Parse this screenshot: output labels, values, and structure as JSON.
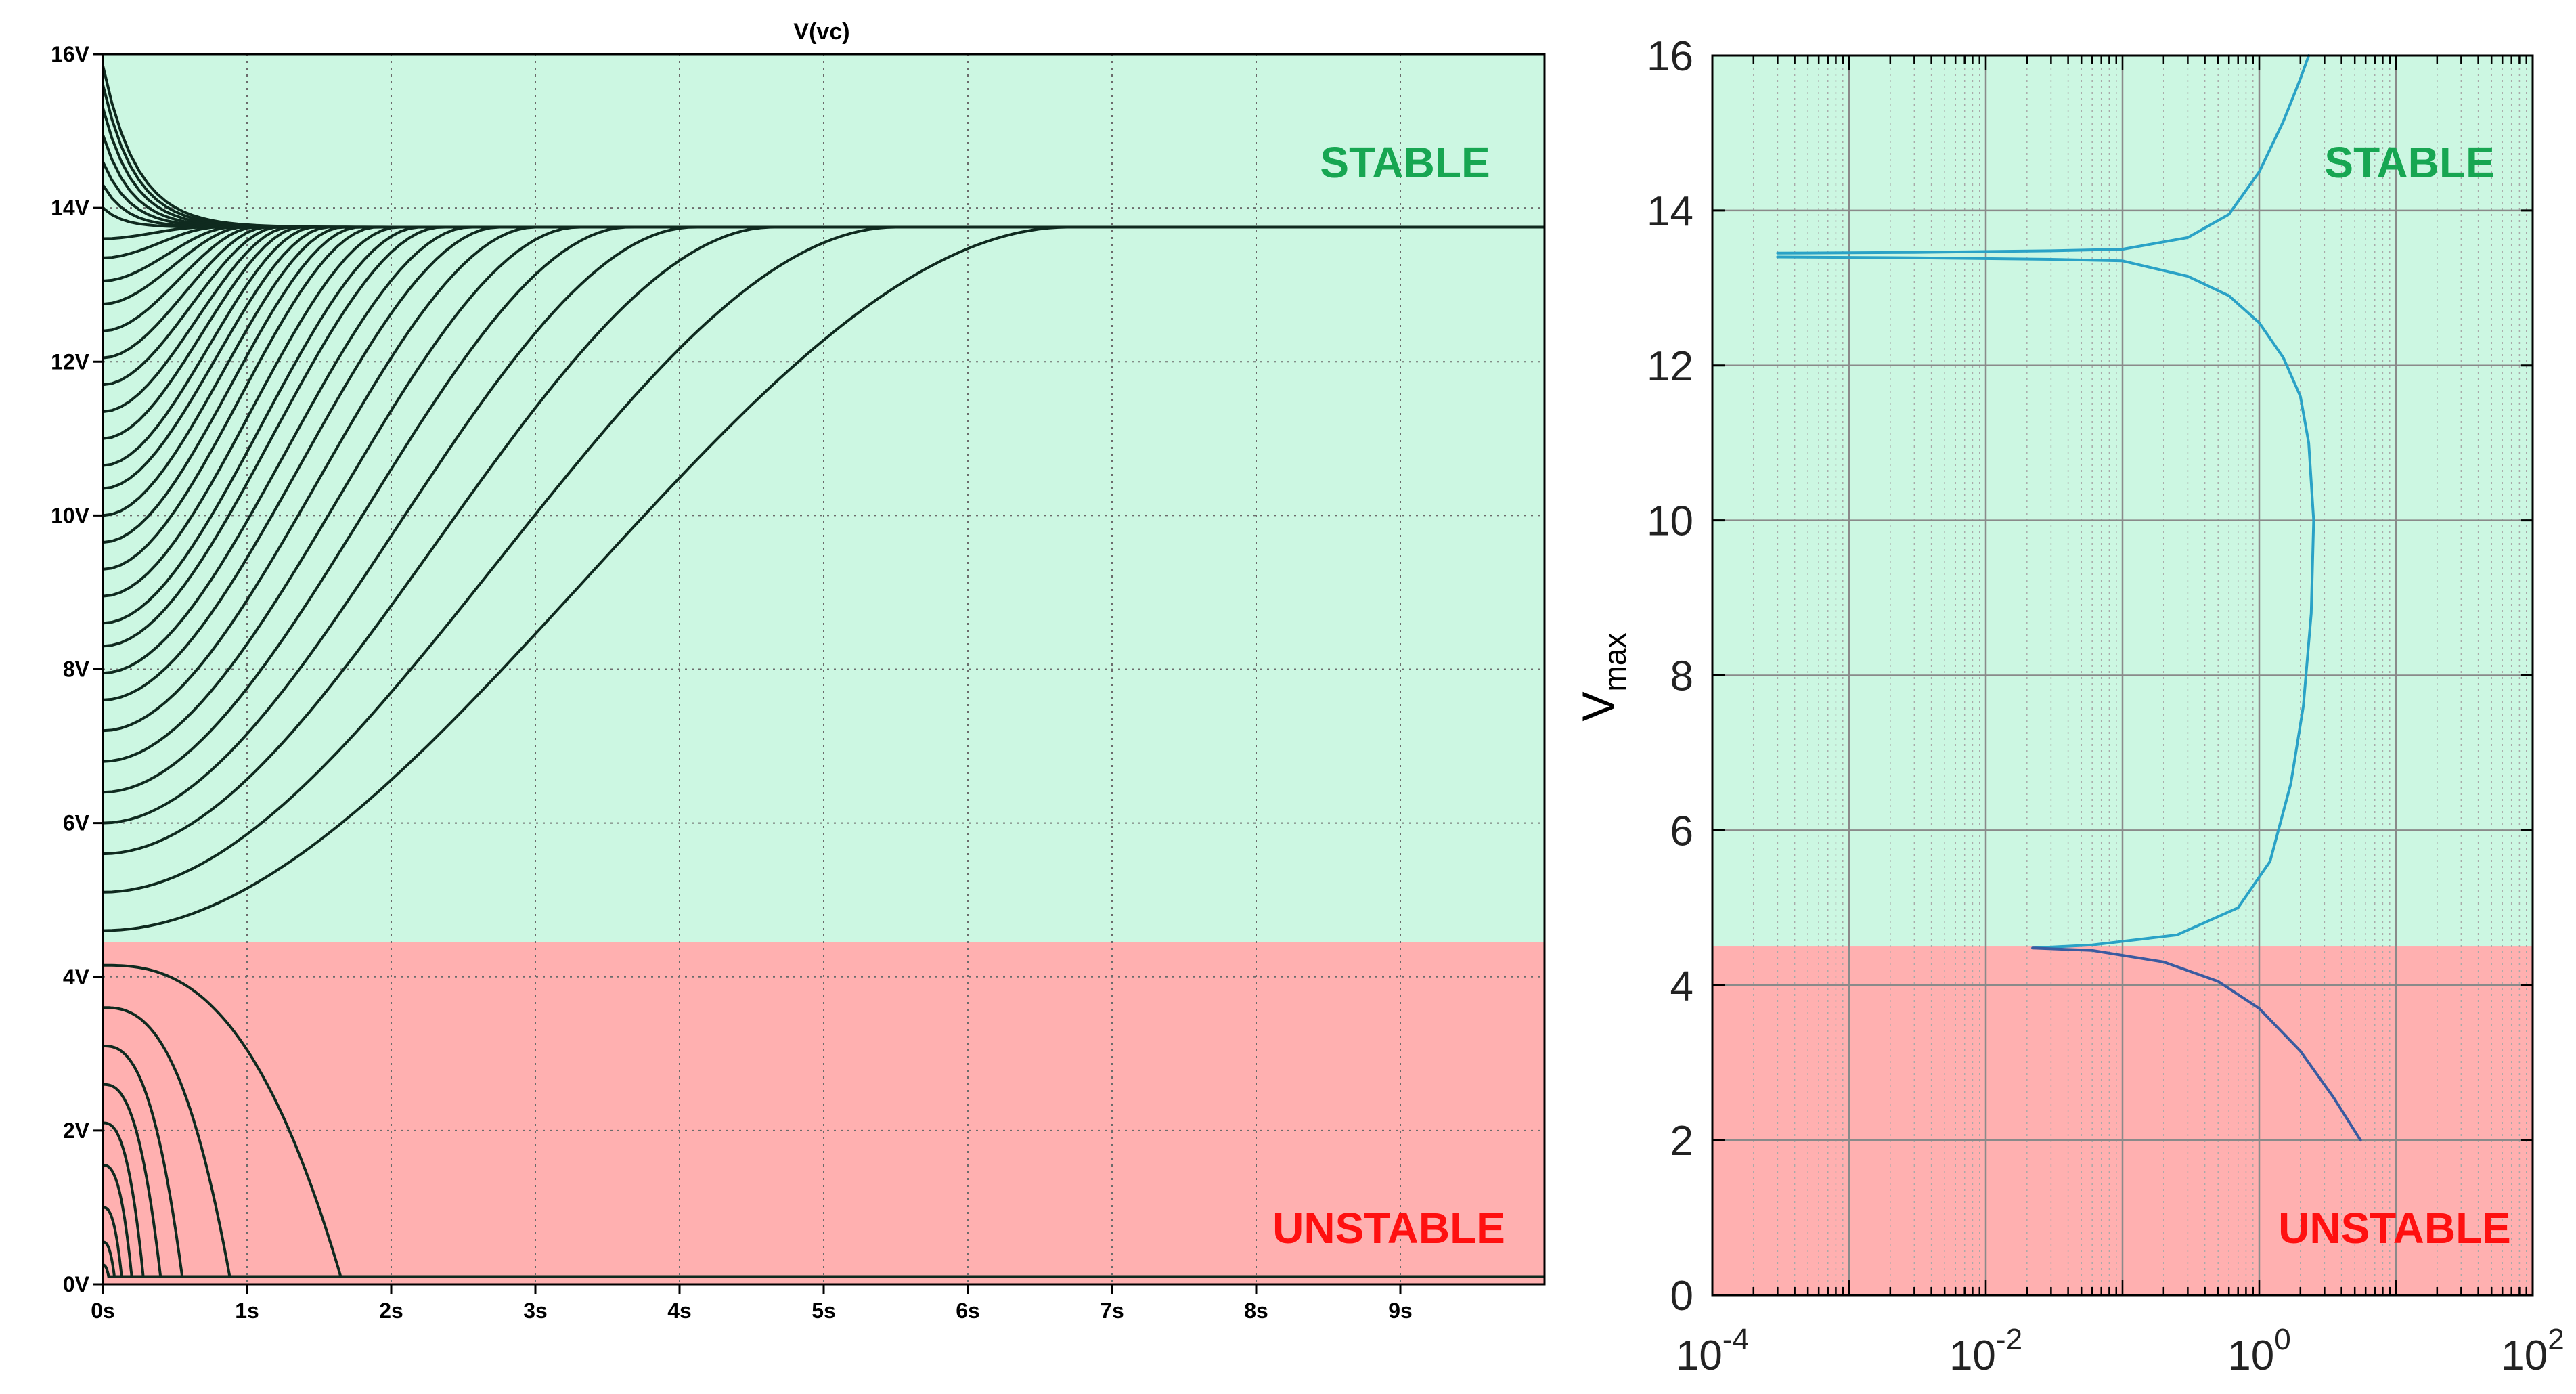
{
  "colors": {
    "stable_fill": "#ccf7e2",
    "unstable_fill": "#ffb0b0",
    "stable_text": "#17a652",
    "unstable_text": "#ff1010",
    "left_trace": "#0f2a1f",
    "right_curve_upper": "#2aa2c6",
    "right_curve_lower": "#3a5ba0"
  },
  "chart_data": [
    {
      "type": "line",
      "title": "V(vc)",
      "xlabel": "",
      "ylabel": "",
      "xlim": [
        0,
        10
      ],
      "ylim": [
        0,
        16
      ],
      "x_tick_values": [
        0,
        1,
        2,
        3,
        4,
        5,
        6,
        7,
        8,
        9
      ],
      "x_tick_labels": [
        "0s",
        "1s",
        "2s",
        "3s",
        "4s",
        "5s",
        "6s",
        "7s",
        "8s",
        "9s"
      ],
      "y_tick_values": [
        0,
        2,
        4,
        6,
        8,
        10,
        12,
        14,
        16
      ],
      "y_tick_labels": [
        "0V",
        "2V",
        "4V",
        "6V",
        "8V",
        "10V",
        "12V",
        "14V",
        "16V"
      ],
      "grid": true,
      "region_threshold": 4.45,
      "region_labels": {
        "stable": "STABLE",
        "unstable": "UNSTABLE"
      },
      "stable_equilibrium": 13.75,
      "unstable_floor": 0.1,
      "stable_initial_voltages": [
        4.6,
        5.1,
        5.6,
        6.0,
        6.4,
        6.8,
        7.2,
        7.6,
        7.95,
        8.3,
        8.6,
        8.95,
        9.3,
        9.65,
        10.0,
        10.35,
        10.65,
        11.0,
        11.35,
        11.7,
        12.05,
        12.4,
        12.75,
        13.05,
        13.35,
        13.6,
        14.0,
        14.3,
        14.6,
        14.95,
        15.3,
        15.6,
        15.85
      ],
      "stable_settle_times": [
        6.7,
        5.5,
        4.65,
        4.1,
        3.65,
        3.3,
        3.0,
        2.75,
        2.55,
        2.35,
        2.2,
        2.05,
        1.9,
        1.78,
        1.67,
        1.57,
        1.47,
        1.38,
        1.3,
        1.22,
        1.14,
        1.06,
        0.98,
        0.9,
        0.8,
        0.7,
        0.6,
        0.7,
        0.8,
        0.85,
        0.9,
        0.95,
        1.0
      ],
      "unstable_initial_voltages": [
        4.15,
        3.6,
        3.1,
        2.6,
        2.1,
        1.55,
        1.0,
        0.55,
        0.25
      ],
      "unstable_collapse_times": [
        1.65,
        0.88,
        0.55,
        0.4,
        0.28,
        0.2,
        0.13,
        0.08,
        0.04
      ]
    },
    {
      "type": "line",
      "title": "",
      "xlabel": "",
      "ylabel": "V_max",
      "x_scale": "log",
      "xlim": [
        0.0001,
        100
      ],
      "ylim": [
        0,
        16
      ],
      "x_tick_values": [
        0.0001,
        0.01,
        1,
        100
      ],
      "x_tick_labels": [
        {
          "base": "10",
          "exp": "-4"
        },
        {
          "base": "10",
          "exp": "-2"
        },
        {
          "base": "10",
          "exp": "0"
        },
        {
          "base": "10",
          "exp": "2"
        }
      ],
      "y_tick_values": [
        0,
        2,
        4,
        6,
        8,
        10,
        12,
        14,
        16
      ],
      "y_tick_labels": [
        "0",
        "2",
        "4",
        "6",
        "8",
        "10",
        "12",
        "14",
        "16"
      ],
      "grid": true,
      "region_threshold": 4.5,
      "region_labels": {
        "stable": "STABLE",
        "unstable": "UNSTABLE"
      },
      "series": [
        {
          "points": [
            [
              0.0003,
              13.45
            ],
            [
              0.003,
              13.46
            ],
            [
              0.03,
              13.48
            ],
            [
              0.1,
              13.5
            ],
            [
              0.3,
              13.65
            ],
            [
              0.6,
              13.95
            ],
            [
              1.0,
              14.5
            ],
            [
              1.5,
              15.15
            ],
            [
              2.0,
              15.7
            ],
            [
              2.3,
              16.0
            ]
          ]
        },
        {
          "points": [
            [
              0.0003,
              13.4
            ],
            [
              0.003,
              13.39
            ],
            [
              0.03,
              13.37
            ],
            [
              0.1,
              13.35
            ],
            [
              0.3,
              13.15
            ],
            [
              0.6,
              12.9
            ],
            [
              1.0,
              12.55
            ],
            [
              1.5,
              12.1
            ],
            [
              2.0,
              11.6
            ],
            [
              2.3,
              11.0
            ],
            [
              2.5,
              10.0
            ],
            [
              2.4,
              8.8
            ],
            [
              2.1,
              7.6
            ],
            [
              1.7,
              6.6
            ],
            [
              1.2,
              5.6
            ],
            [
              0.7,
              5.0
            ],
            [
              0.25,
              4.65
            ],
            [
              0.06,
              4.52
            ],
            [
              0.022,
              4.48
            ]
          ]
        },
        {
          "points": [
            [
              0.022,
              4.48
            ],
            [
              0.06,
              4.45
            ],
            [
              0.2,
              4.3
            ],
            [
              0.5,
              4.05
            ],
            [
              1.0,
              3.7
            ],
            [
              2.0,
              3.15
            ],
            [
              3.5,
              2.55
            ],
            [
              5.5,
              2.0
            ]
          ]
        }
      ]
    }
  ]
}
